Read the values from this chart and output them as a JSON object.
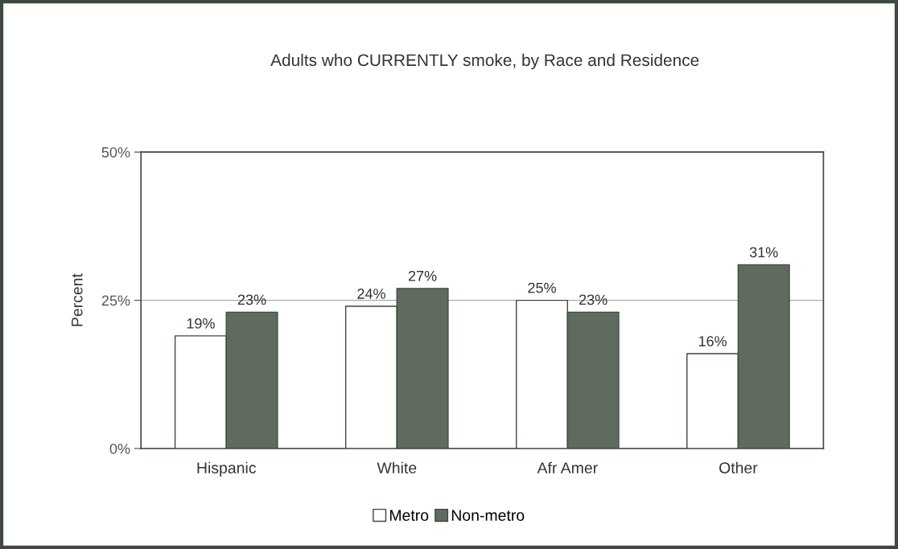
{
  "chart_data": {
    "type": "bar",
    "title": "Adults who CURRENTLY smoke, by Race and Residence",
    "ylabel": "Percent",
    "categories": [
      "Hispanic",
      "White",
      "Afr Amer",
      "Other"
    ],
    "series": [
      {
        "name": "Metro",
        "color": "#ffffff",
        "values": [
          19,
          24,
          25,
          16
        ],
        "value_labels": [
          "19%",
          "24%",
          "25%",
          "16%"
        ]
      },
      {
        "name": "Non-metro",
        "color": "#5e6b5e",
        "values": [
          23,
          27,
          23,
          31
        ],
        "value_labels": [
          "23%",
          "27%",
          "23%",
          "31%"
        ]
      }
    ],
    "ylim": [
      0,
      50
    ],
    "yticks": [
      {
        "value": 0,
        "label": "0%"
      },
      {
        "value": 25,
        "label": "25%"
      },
      {
        "value": 50,
        "label": "50%"
      }
    ],
    "grid": "y",
    "legend": "bottom"
  }
}
